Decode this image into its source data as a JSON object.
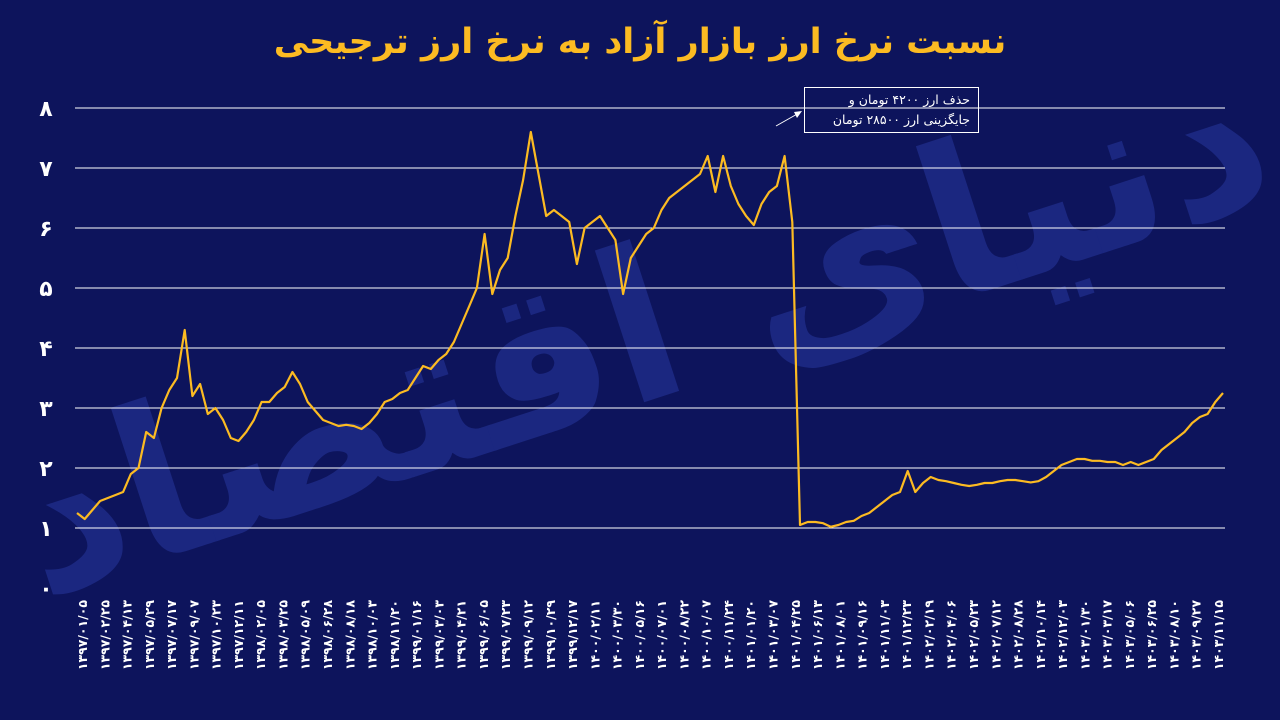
{
  "chart_data": {
    "type": "line",
    "title": "نسبت نرخ ارز بازار آزاد به نرخ ارز ترجیحی",
    "xlabel": "",
    "ylabel": "",
    "ylim": [
      0,
      8
    ],
    "y_ticks": [
      "۰",
      "۱",
      "۲",
      "۳",
      "۴",
      "۵",
      "۶",
      "۷",
      "۸"
    ],
    "grid": true,
    "line_color": "#fcbb22",
    "grid_color": "#ffffff",
    "background_color": "#0d145c",
    "title_color": "#fcbb22",
    "x_tick_labels": [
      "۱۳۹۷/۰۱/۰۵",
      "۱۳۹۷/۰۲/۲۵",
      "۱۳۹۷/۰۴/۱۳",
      "۱۳۹۷/۰۵/۲۹",
      "۱۳۹۷/۰۷/۱۷",
      "۱۳۹۷/۰۹/۰۷",
      "۱۳۹۷/۱۰/۲۳",
      "۱۳۹۷/۱۲/۱۱",
      "۱۳۹۸/۰۲/۰۵",
      "۱۳۹۸/۰۳/۲۵",
      "۱۳۹۸/۰۵/۰۹",
      "۱۳۹۸/۰۶/۲۸",
      "۱۳۹۸/۰۸/۱۸",
      "۱۳۹۸/۱۰/۰۳",
      "۱۳۹۸/۱۱/۲۰",
      "۱۳۹۹/۰۱/۱۶",
      "۱۳۹۹/۰۳/۰۳",
      "۱۳۹۹/۰۴/۲۱",
      "۱۳۹۹/۰۶/۰۵",
      "۱۳۹۹/۰۷/۲۳",
      "۱۳۹۹/۰۹/۱۲",
      "۱۳۹۹/۱۰/۲۹",
      "۱۳۹۹/۱۲/۱۷",
      "۱۴۰۰/۰۲/۱۱",
      "۱۴۰۰/۰۳/۳۰",
      "۱۴۰۰/۰۵/۱۶",
      "۱۴۰۰/۰۷/۰۱",
      "۱۴۰۰/۰۸/۲۲",
      "۱۴۰۰/۱۰/۰۷",
      "۱۴۰۰/۱۱/۲۴",
      "۱۴۰۱/۰۱/۲۰",
      "۱۴۰۱/۰۳/۰۷",
      "۱۴۰۱/۰۴/۲۵",
      "۱۴۰۱/۰۶/۱۳",
      "۱۴۰۱/۰۸/۰۱",
      "۱۴۰۱/۰۹/۱۶",
      "۱۴۰۱/۱۱/۰۳",
      "۱۴۰۱/۱۲/۲۳",
      "۱۴۰۲/۰۲/۱۹",
      "۱۴۰۲/۰۴/۰۶",
      "۱۴۰۲/۰۵/۲۳",
      "۱۴۰۲/۰۷/۱۲",
      "۱۴۰۲/۰۸/۲۸",
      "۱۴۰۲/۱۰/۱۴",
      "۱۴۰۲/۱۲/۰۳",
      "۱۴۰۳/۰۱/۳۰",
      "۱۴۰۳/۰۳/۱۷",
      "۱۴۰۳/۰۵/۰۶",
      "۱۴۰۳/۰۶/۲۵",
      "۱۴۰۳/۰۸/۱۰",
      "۱۴۰۳/۰۹/۲۷",
      "۱۴۰۳/۱۱/۱۵"
    ],
    "series": [
      {
        "values": [
          1.25,
          1.15,
          1.3,
          1.45,
          1.5,
          1.55,
          1.6,
          1.9,
          2.0,
          2.6,
          2.5,
          3.0,
          3.3,
          3.5,
          4.3,
          3.2,
          3.4,
          2.9,
          3.0,
          2.8,
          2.5,
          2.45,
          2.6,
          2.8,
          3.1,
          3.1,
          3.25,
          3.35,
          3.6,
          3.4,
          3.1,
          2.95,
          2.8,
          2.75,
          2.7,
          2.72,
          2.7,
          2.65,
          2.75,
          2.9,
          3.1,
          3.15,
          3.25,
          3.3,
          3.5,
          3.7,
          3.65,
          3.8,
          3.9,
          4.1,
          4.4,
          4.7,
          5.0,
          5.9,
          4.9,
          5.3,
          5.5,
          6.2,
          6.8,
          7.6,
          6.9,
          6.2,
          6.3,
          6.2,
          6.1,
          5.4,
          6.0,
          6.1,
          6.2,
          6.0,
          5.8,
          4.9,
          5.5,
          5.7,
          5.9,
          6.0,
          6.3,
          6.5,
          6.6,
          6.7,
          6.8,
          6.9,
          7.2,
          6.6,
          7.2,
          6.7,
          6.4,
          6.2,
          6.05,
          6.4,
          6.6,
          6.7,
          7.2,
          6.1,
          1.05,
          1.1,
          1.1,
          1.08,
          1.02,
          1.05,
          1.1,
          1.12,
          1.2,
          1.25,
          1.35,
          1.45,
          1.55,
          1.6,
          1.95,
          1.6,
          1.75,
          1.85,
          1.8,
          1.78,
          1.75,
          1.72,
          1.7,
          1.72,
          1.75,
          1.75,
          1.78,
          1.8,
          1.8,
          1.78,
          1.76,
          1.78,
          1.85,
          1.95,
          2.05,
          2.1,
          2.15,
          2.15,
          2.12,
          2.12,
          2.1,
          2.1,
          2.05,
          2.1,
          2.05,
          2.1,
          2.15,
          2.3,
          2.4,
          2.5,
          2.6,
          2.75,
          2.85,
          2.9,
          3.1,
          3.25
        ]
      }
    ]
  },
  "annotation": {
    "line1": "حذف ارز ۴۲۰۰ تومان و",
    "line2": "جایگزینی ارز ۲۸۵۰۰ تومان"
  },
  "watermark": {
    "text": "دنیای اقتصاد",
    "color": "#1d2a85"
  }
}
